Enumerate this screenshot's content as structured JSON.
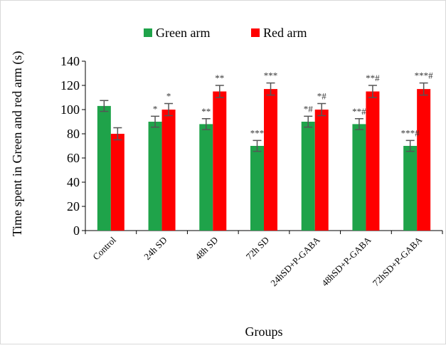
{
  "chart_data": {
    "type": "bar",
    "title": "",
    "xlabel": "Groups",
    "ylabel": "Time spent in Green and red arm (s)",
    "ylim": [
      0,
      140
    ],
    "yticks": [
      0,
      20,
      40,
      60,
      80,
      100,
      120,
      140
    ],
    "grid": false,
    "legend_position": "top",
    "categories": [
      "Control",
      "24h SD",
      "48h SD",
      "72h SD",
      "24hSD+P-GABA",
      "48hSD+P-GABA",
      "72hSD+P-GABA"
    ],
    "series": [
      {
        "name": "Green arm",
        "color": "#1fa34a",
        "values": [
          103,
          90,
          88,
          70,
          90,
          88,
          70
        ],
        "errors": [
          4.5,
          4.5,
          4.5,
          4.5,
          4.5,
          4.5,
          4.5
        ],
        "annotations": [
          "",
          "*",
          "**",
          "***",
          "*#",
          "**#",
          "***#"
        ]
      },
      {
        "name": "Red arm",
        "color": "#ff0000",
        "values": [
          80,
          100,
          115,
          117,
          100,
          115,
          117
        ],
        "errors": [
          5,
          5,
          5,
          5,
          5,
          5,
          5
        ],
        "annotations": [
          "",
          "*",
          "**",
          "***",
          "*#",
          "**#",
          "***#"
        ]
      }
    ]
  }
}
